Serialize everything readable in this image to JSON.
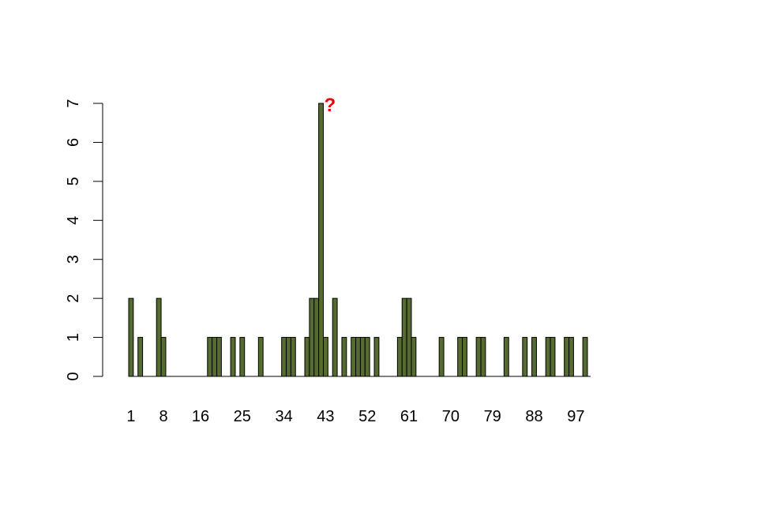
{
  "chart_data": {
    "type": "bar",
    "annotation": "?",
    "annotation_color": "#ee0000",
    "categories": [
      1,
      null,
      null,
      null,
      null,
      null,
      null,
      8,
      null,
      null,
      null,
      null,
      null,
      null,
      null,
      16,
      null,
      null,
      null,
      null,
      null,
      null,
      null,
      null,
      25,
      null,
      null,
      null,
      null,
      null,
      null,
      null,
      null,
      34,
      null,
      null,
      null,
      null,
      null,
      null,
      null,
      null,
      43,
      null,
      null,
      null,
      null,
      null,
      null,
      null,
      null,
      52,
      null,
      null,
      null,
      null,
      null,
      null,
      null,
      null,
      61,
      null,
      null,
      null,
      null,
      null,
      null,
      null,
      null,
      70,
      null,
      null,
      null,
      null,
      null,
      null,
      null,
      null,
      79,
      null,
      null,
      null,
      null,
      null,
      null,
      null,
      null,
      88,
      null,
      null,
      null,
      null,
      null,
      null,
      null,
      null,
      97,
      null,
      null
    ],
    "values": [
      2,
      0,
      1,
      0,
      0,
      0,
      2,
      1,
      0,
      0,
      0,
      0,
      0,
      0,
      0,
      0,
      0,
      1,
      1,
      1,
      0,
      0,
      1,
      0,
      1,
      0,
      0,
      0,
      1,
      0,
      0,
      0,
      0,
      1,
      1,
      1,
      0,
      0,
      1,
      2,
      2,
      7,
      1,
      0,
      2,
      0,
      1,
      0,
      1,
      1,
      1,
      1,
      0,
      1,
      0,
      0,
      0,
      0,
      1,
      2,
      2,
      1,
      0,
      0,
      0,
      0,
      0,
      1,
      0,
      0,
      0,
      1,
      1,
      0,
      0,
      1,
      1,
      0,
      0,
      0,
      0,
      1,
      0,
      0,
      0,
      1,
      0,
      1,
      0,
      0,
      1,
      1,
      0,
      0,
      1,
      1,
      0,
      0,
      1
    ],
    "color": "#556b2f",
    "ylim": [
      0,
      7
    ],
    "yticks": [
      0,
      1,
      2,
      3,
      4,
      5,
      6,
      7
    ]
  }
}
